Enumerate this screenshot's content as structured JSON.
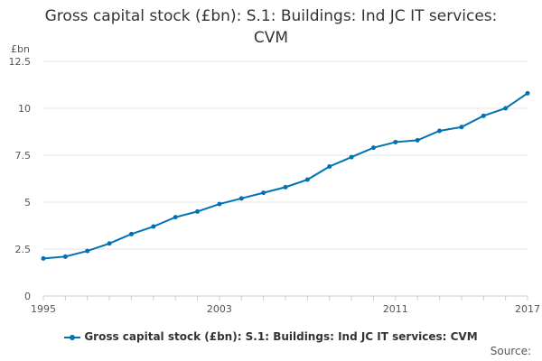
{
  "chart_data": {
    "type": "line",
    "title": "Gross capital stock (£bn): S.1: Buildings: Ind JC IT services: CVM",
    "title_lines": [
      "Gross capital stock (£bn): S.1: Buildings: Ind JC IT services:",
      "CVM"
    ],
    "ylabel": "£bn",
    "xlabel": "",
    "ylim": [
      0,
      12.5
    ],
    "yticks": [
      0,
      2.5,
      5,
      7.5,
      10,
      12.5
    ],
    "ytick_labels": [
      "0",
      "2.5",
      "5",
      "7.5",
      "10",
      "12.5"
    ],
    "xlim": [
      1995,
      2017
    ],
    "xtick_labels_years": [
      1995,
      2003,
      2011,
      2017
    ],
    "grid": true,
    "series": [
      {
        "name": "Gross capital stock (£bn): S.1: Buildings: Ind JC IT services: CVM",
        "color": "#0072b2",
        "x": [
          1995,
          1996,
          1997,
          1998,
          1999,
          2000,
          2001,
          2002,
          2003,
          2004,
          2005,
          2006,
          2007,
          2008,
          2009,
          2010,
          2011,
          2012,
          2013,
          2014,
          2015,
          2016,
          2017
        ],
        "values": [
          2.0,
          2.1,
          2.4,
          2.8,
          3.3,
          3.7,
          4.2,
          4.5,
          4.9,
          5.2,
          5.5,
          5.8,
          6.2,
          6.9,
          7.4,
          7.9,
          8.2,
          8.3,
          8.8,
          9.0,
          9.6,
          10.0,
          10.8
        ]
      }
    ],
    "legend": "bottom"
  },
  "source_label": "Source:"
}
